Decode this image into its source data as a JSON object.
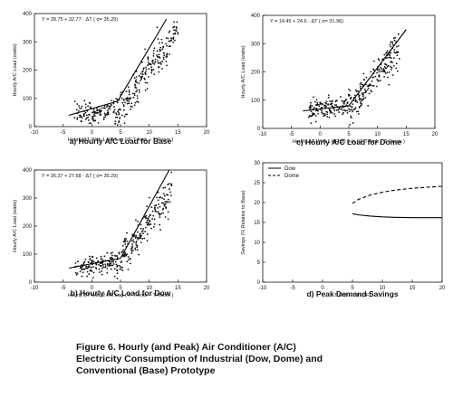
{
  "figure_caption": {
    "line1": "Figure 6. Hourly (and Peak) Air Conditioner (A/C)",
    "line2": "Electricity Consumption of Industrial (Dow, Dome) and",
    "line3": "Conventional (Base) Prototype"
  },
  "chart_data": [
    {
      "id": "a",
      "type": "scatter",
      "caption": "a) Hourly A/C Load for Base",
      "equation": "Y = 28.75 + 32.77 · ΔT  ( σ= 35.29)",
      "xlabel": "Hourly ΔT With 1 HR Lag  (°F  T Amb – T Room )",
      "ylabel": "Hourly A/C Load (watts)",
      "xlim": [
        -10,
        20
      ],
      "ylim": [
        0,
        400
      ],
      "xticks": [
        -10,
        -5,
        0,
        5,
        10,
        15,
        20
      ],
      "yticks": [
        0,
        100,
        200,
        300,
        400
      ],
      "cloud": {
        "x_range": [
          -3,
          15
        ],
        "y_mean_base": 40,
        "break_x": 4,
        "slope_after": 28,
        "spread": 30,
        "count": 340
      },
      "fit_line": {
        "x": [
          -4,
          4.5,
          13
        ],
        "y": [
          40,
          90,
          380
        ]
      }
    },
    {
      "id": "c",
      "type": "scatter",
      "caption": "c) Hourly A/C Load for Dome",
      "equation": "Y = 14.45 + 24.6 ·  ΔT  ( σ= 31.96)",
      "xlabel": "Hourly ΔT With 1 HR 30 min  (°F  T Amb – T Room )",
      "ylabel": "Hourly A/C Load (watts)",
      "xlim": [
        -10,
        20
      ],
      "ylim": [
        0,
        400
      ],
      "xticks": [
        -10,
        -5,
        0,
        5,
        10,
        15,
        20
      ],
      "yticks": [
        0,
        100,
        200,
        300,
        400
      ],
      "cloud": {
        "x_range": [
          -2,
          14
        ],
        "y_mean_base": 65,
        "break_x": 5,
        "slope_after": 25,
        "spread": 30,
        "count": 340
      },
      "fit_line": {
        "x": [
          -3,
          5,
          15
        ],
        "y": [
          62,
          80,
          350
        ]
      }
    },
    {
      "id": "b",
      "type": "scatter",
      "caption": "b) Hourly A/C Load for Dow",
      "equation": "Y = 26.37 + 27.68 ·  ΔT  ( σ= 35.29)",
      "xlabel": "Hourly ΔT With 2 HR Lag  (°F  T Amb – T Room )",
      "ylabel": "Hourly A/C Load (watts)",
      "xlim": [
        -10,
        20
      ],
      "ylim": [
        0,
        400
      ],
      "xticks": [
        -10,
        -5,
        0,
        5,
        10,
        15,
        20
      ],
      "yticks": [
        0,
        100,
        200,
        300,
        400
      ],
      "cloud": {
        "x_range": [
          -3,
          14
        ],
        "y_mean_base": 50,
        "break_x": 4,
        "slope_after": 28,
        "spread": 28,
        "count": 340
      },
      "fit_line": {
        "x": [
          -4,
          5,
          13.5
        ],
        "y": [
          50,
          85,
          400
        ]
      }
    },
    {
      "id": "d",
      "type": "line",
      "caption": "d) Peak Demand Savings",
      "xlabel": "T Out  –  T In (°F)",
      "ylabel": "Savings (% Relative to Base)",
      "xlim": [
        -10,
        20
      ],
      "ylim": [
        0,
        30
      ],
      "xticks": [
        -10,
        -5,
        0,
        5,
        10,
        15,
        20
      ],
      "yticks": [
        0,
        5,
        10,
        15,
        20,
        25,
        30
      ],
      "legend": "top-left",
      "series": [
        {
          "name": "Dow",
          "style": "solid",
          "x": [
            5,
            6,
            8,
            10,
            12,
            15,
            18,
            20
          ],
          "y": [
            17.2,
            16.9,
            16.6,
            16.4,
            16.3,
            16.2,
            16.2,
            16.2
          ]
        },
        {
          "name": "Dome",
          "style": "dashed",
          "x": [
            5,
            6,
            8,
            10,
            12,
            15,
            18,
            20
          ],
          "y": [
            19.8,
            20.8,
            21.9,
            22.6,
            23.1,
            23.6,
            23.9,
            24.1
          ]
        }
      ]
    }
  ]
}
